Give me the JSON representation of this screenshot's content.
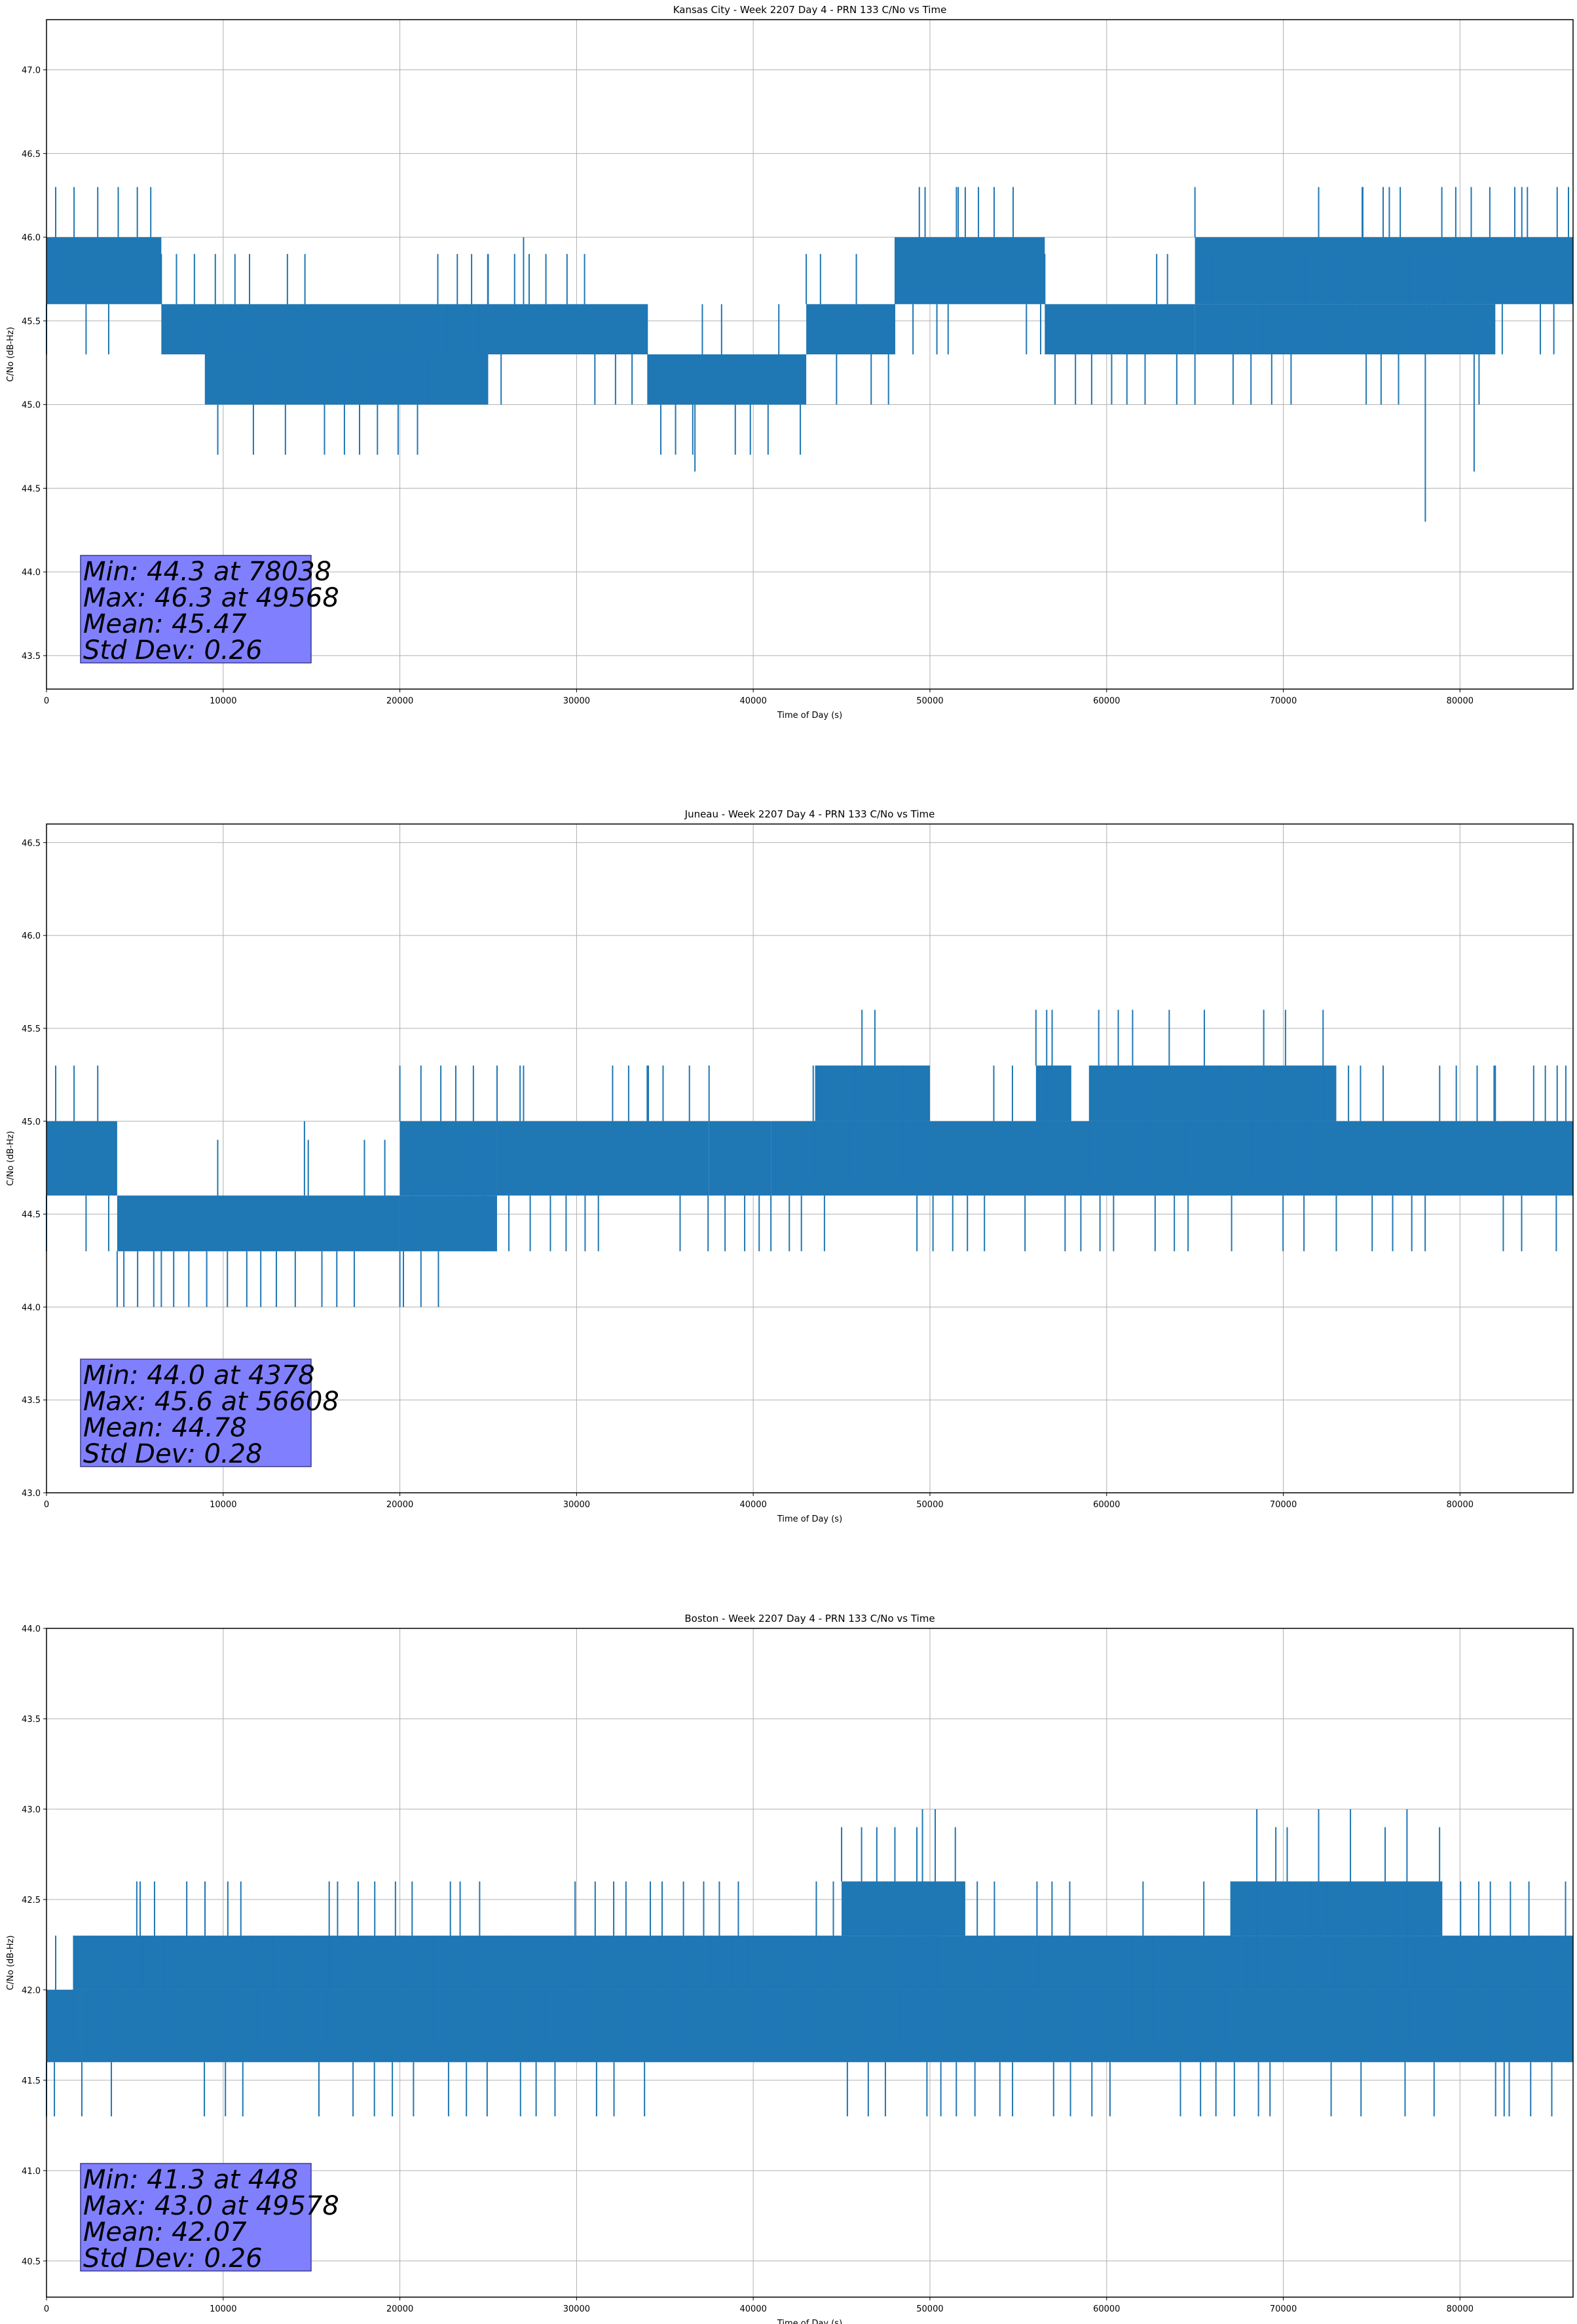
{
  "figure": {
    "colors": {
      "line": "#1f77b4",
      "grid": "#b0b0b0",
      "statbox": "#8080ff",
      "statbox_edge": "#3a3a8a"
    }
  },
  "chart_data": [
    {
      "type": "line",
      "title": "Kansas City - Week 2207 Day 4 - PRN 133 C/No vs Time",
      "xlabel": "Time of Day (s)",
      "ylabel": "C/No (dB-Hz)",
      "xlim": [
        0,
        86400
      ],
      "ylim": [
        43.3,
        47.3
      ],
      "xticks": [
        0,
        10000,
        20000,
        30000,
        40000,
        50000,
        60000,
        70000,
        80000
      ],
      "yticks": [
        43.5,
        44.0,
        44.5,
        45.0,
        45.5,
        46.0,
        46.5,
        47.0
      ],
      "grid": true,
      "series": [
        {
          "color": "#1f77b4",
          "segments": [
            {
              "x0": 0,
              "x1": 6500,
              "lo": 45.6,
              "hi": 46.0
            },
            {
              "x0": 6500,
              "x1": 25000,
              "lo": 45.3,
              "hi": 45.6
            },
            {
              "x0": 9000,
              "x1": 25000,
              "lo": 45.0,
              "hi": 45.3
            },
            {
              "x0": 25000,
              "x1": 34000,
              "lo": 45.3,
              "hi": 45.6
            },
            {
              "x0": 34000,
              "x1": 43000,
              "lo": 45.0,
              "hi": 45.3
            },
            {
              "x0": 43000,
              "x1": 48000,
              "lo": 45.3,
              "hi": 45.6
            },
            {
              "x0": 48000,
              "x1": 56500,
              "lo": 45.6,
              "hi": 46.0
            },
            {
              "x0": 56500,
              "x1": 65000,
              "lo": 45.3,
              "hi": 45.6
            },
            {
              "x0": 65000,
              "x1": 86400,
              "lo": 45.6,
              "hi": 46.0
            },
            {
              "x0": 65000,
              "x1": 82000,
              "lo": 45.3,
              "hi": 45.6
            }
          ],
          "spikes": [
            [
              27000,
              46.0
            ],
            [
              36700,
              44.6
            ],
            [
              49400,
              46.3
            ],
            [
              51500,
              46.3
            ],
            [
              52000,
              46.3
            ],
            [
              72000,
              46.3
            ],
            [
              74500,
              46.3
            ],
            [
              76000,
              46.3
            ],
            [
              78038,
              44.3
            ],
            [
              80800,
              44.6
            ],
            [
              83500,
              46.3
            ],
            [
              85500,
              46.3
            ]
          ]
        }
      ],
      "stats": {
        "min": "Min: 44.3 at 78038",
        "max": "Max: 46.3 at 49568",
        "mean": "Mean: 45.47",
        "std": "Std Dev: 0.26"
      }
    },
    {
      "type": "line",
      "title": "Juneau - Week 2207 Day 4 - PRN 133 C/No vs Time",
      "xlabel": "Time of Day (s)",
      "ylabel": "C/No (dB-Hz)",
      "xlim": [
        0,
        86400
      ],
      "ylim": [
        43.0,
        46.6
      ],
      "xticks": [
        0,
        10000,
        20000,
        30000,
        40000,
        50000,
        60000,
        70000,
        80000
      ],
      "yticks": [
        43.0,
        43.5,
        44.0,
        44.5,
        45.0,
        45.5,
        46.0,
        46.5
      ],
      "grid": true,
      "series": [
        {
          "color": "#1f77b4",
          "segments": [
            {
              "x0": 0,
              "x1": 4000,
              "lo": 44.6,
              "hi": 45.0
            },
            {
              "x0": 4000,
              "x1": 20000,
              "lo": 44.3,
              "hi": 44.6
            },
            {
              "x0": 20000,
              "x1": 25500,
              "lo": 44.3,
              "hi": 44.6
            },
            {
              "x0": 20000,
              "x1": 25500,
              "lo": 44.6,
              "hi": 45.0
            },
            {
              "x0": 25500,
              "x1": 37500,
              "lo": 44.6,
              "hi": 45.0
            },
            {
              "x0": 37500,
              "x1": 41000,
              "lo": 44.6,
              "hi": 45.0
            },
            {
              "x0": 41000,
              "x1": 73000,
              "lo": 44.6,
              "hi": 45.0
            },
            {
              "x0": 43500,
              "x1": 50000,
              "lo": 45.0,
              "hi": 45.3
            },
            {
              "x0": 56000,
              "x1": 58000,
              "lo": 45.0,
              "hi": 45.3
            },
            {
              "x0": 59000,
              "x1": 73000,
              "lo": 45.0,
              "hi": 45.3
            },
            {
              "x0": 73000,
              "x1": 86400,
              "lo": 44.6,
              "hi": 45.0
            }
          ],
          "spikes": [
            [
              4378,
              44.0
            ],
            [
              6500,
              44.0
            ],
            [
              14600,
              45.0
            ],
            [
              20200,
              44.0
            ],
            [
              27000,
              45.3
            ],
            [
              34000,
              45.3
            ],
            [
              56608,
              45.6
            ],
            [
              82000,
              45.3
            ],
            [
              85500,
              45.3
            ]
          ]
        }
      ],
      "stats": {
        "min": "Min: 44.0 at 4378",
        "max": "Max: 45.6 at 56608",
        "mean": "Mean: 44.78",
        "std": "Std Dev: 0.28"
      }
    },
    {
      "type": "line",
      "title": "Boston - Week 2207 Day 4 - PRN 133 C/No vs Time",
      "xlabel": "Time of Day (s)",
      "ylabel": "C/No (dB-Hz)",
      "xlim": [
        0,
        86400
      ],
      "ylim": [
        40.3,
        44.0
      ],
      "xticks": [
        0,
        10000,
        20000,
        30000,
        40000,
        50000,
        60000,
        70000,
        80000
      ],
      "yticks": [
        40.5,
        41.0,
        41.5,
        42.0,
        42.5,
        43.0,
        43.5,
        44.0
      ],
      "grid": true,
      "series": [
        {
          "color": "#1f77b4",
          "segments": [
            {
              "x0": 0,
              "x1": 2000,
              "lo": 41.6,
              "hi": 42.0
            },
            {
              "x0": 2000,
              "x1": 86400,
              "lo": 41.6,
              "hi": 42.0
            },
            {
              "x0": 1500,
              "x1": 86400,
              "lo": 42.0,
              "hi": 42.3
            },
            {
              "x0": 45000,
              "x1": 52000,
              "lo": 42.3,
              "hi": 42.6
            },
            {
              "x0": 67000,
              "x1": 79000,
              "lo": 42.3,
              "hi": 42.6
            }
          ],
          "spikes": [
            [
              448,
              41.3
            ],
            [
              5300,
              42.6
            ],
            [
              11000,
              42.6
            ],
            [
              16000,
              42.6
            ],
            [
              49578,
              43.0
            ],
            [
              50300,
              43.0
            ],
            [
              68500,
              43.0
            ],
            [
              72000,
              43.0
            ],
            [
              73800,
              43.0
            ],
            [
              77000,
              43.0
            ],
            [
              82500,
              41.3
            ],
            [
              84000,
              41.3
            ]
          ]
        }
      ],
      "stats": {
        "min": "Min: 41.3 at 448",
        "max": "Max: 43.0 at 49578",
        "mean": "Mean: 42.07",
        "std": "Std Dev: 0.26"
      }
    }
  ]
}
